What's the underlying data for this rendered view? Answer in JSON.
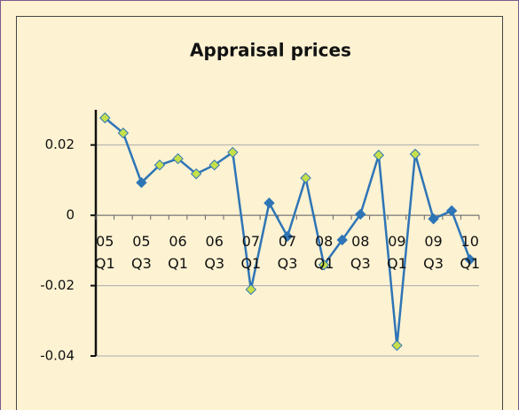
{
  "chart_data": {
    "type": "line",
    "title": "Appraisal prices",
    "categories": [
      "05 Q1",
      null,
      "05 Q3",
      null,
      "06 Q1",
      null,
      "06 Q3",
      null,
      "07 Q1",
      null,
      "07 Q3",
      null,
      "08 Q1",
      null,
      "08 Q3",
      null,
      "09 Q1",
      null,
      "09 Q3",
      null,
      "10 Q1"
    ],
    "series": [
      {
        "color": "#2e75b6",
        "values": [
          0.0277,
          0.0234,
          0.0093,
          0.0143,
          0.0161,
          0.0118,
          0.0143,
          0.0179,
          -0.0211,
          0.0035,
          -0.006,
          0.0106,
          -0.0141,
          -0.007,
          0.0003,
          0.0171,
          -0.037,
          0.0174,
          -0.001,
          0.0013,
          -0.0126
        ],
        "marker_colors": [
          "#c6e04a",
          "#c6e04a",
          "#2e75b6",
          "#c6e04a",
          "#c6e04a",
          "#c6e04a",
          "#c6e04a",
          "#c6e04a",
          "#c6e04a",
          "#2e75b6",
          "#2e75b6",
          "#c6e04a",
          "#c6e04a",
          "#2e75b6",
          "#2e75b6",
          "#c6e04a",
          "#c6e04a",
          "#c6e04a",
          "#2e75b6",
          "#2e75b6",
          "#2e75b6"
        ]
      }
    ],
    "ylim": [
      -0.04,
      0.03
    ],
    "yticks": [
      -0.04,
      -0.02,
      0,
      0.02
    ],
    "grid": true
  }
}
